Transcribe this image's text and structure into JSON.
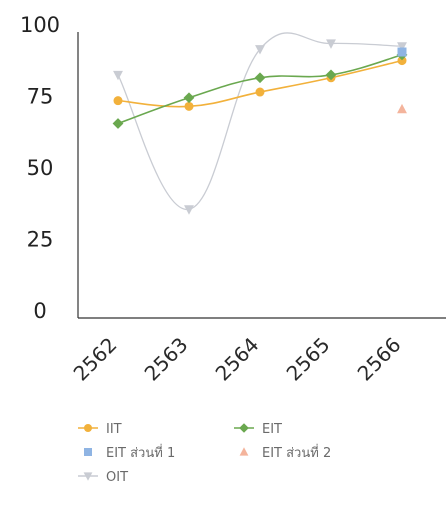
{
  "chart_data": {
    "type": "line",
    "categories": [
      "2562",
      "2563",
      "2564",
      "2565",
      "2566"
    ],
    "ylim": [
      0,
      100
    ],
    "yticks": [
      0,
      25,
      50,
      75,
      100
    ],
    "grid": false,
    "legend_position": "bottom",
    "series": [
      {
        "name": "IIT",
        "values": [
          76,
          74,
          79,
          84,
          90
        ],
        "color": "#f2b13b",
        "marker": "circle"
      },
      {
        "name": "EIT",
        "values": [
          68,
          77,
          84,
          85,
          92
        ],
        "color": "#6aa84f",
        "marker": "diamond"
      },
      {
        "name": "EIT ส่วนที่ 1",
        "values": [
          null,
          null,
          null,
          null,
          93
        ],
        "color": "#8fb4e3",
        "marker": "square"
      },
      {
        "name": "EIT ส่วนที่ 2",
        "values": [
          null,
          null,
          null,
          null,
          73
        ],
        "color": "#f4b49c",
        "marker": "triangle-up"
      },
      {
        "name": "OIT",
        "values": [
          85,
          38,
          94,
          96,
          95
        ],
        "color": "#c9ccd3",
        "marker": "triangle-down"
      }
    ]
  }
}
